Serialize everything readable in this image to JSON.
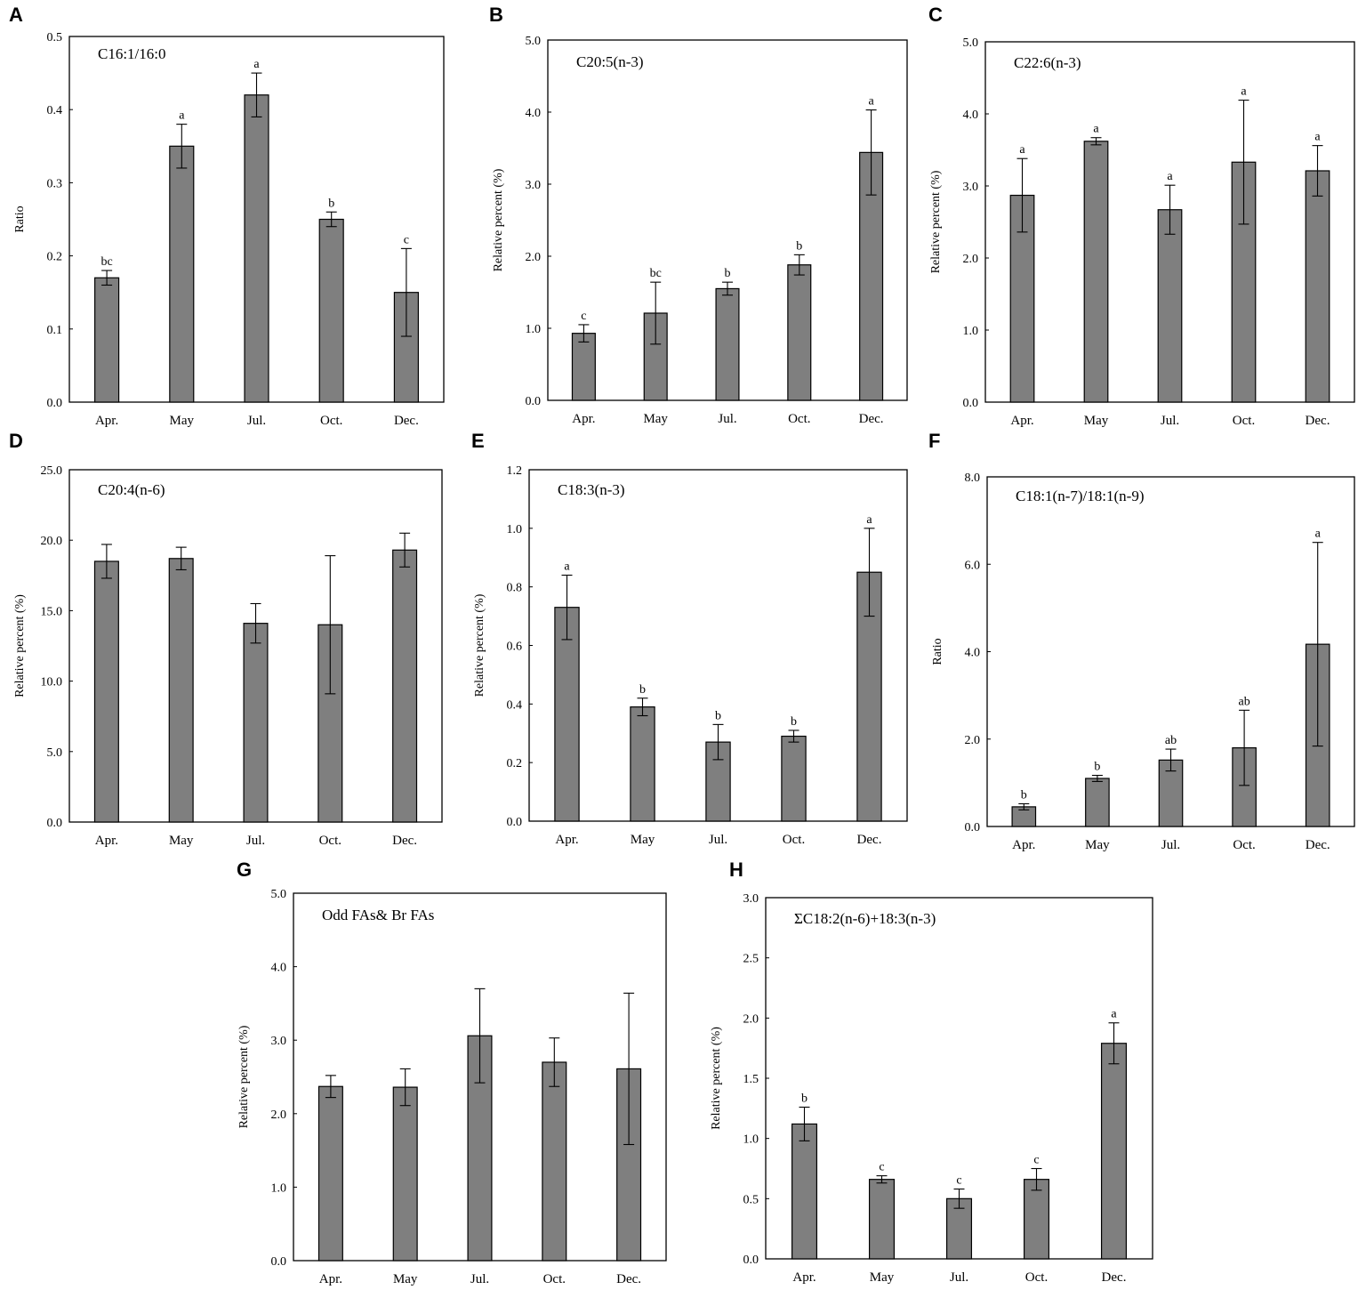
{
  "chart_data": [
    {
      "panel": "A",
      "type": "bar",
      "title": "C16:1/16:0",
      "ylabel": "Ratio",
      "xlabel": "",
      "categories": [
        "Apr.",
        "May",
        "Jul.",
        "Oct.",
        "Dec."
      ],
      "values": [
        0.17,
        0.35,
        0.42,
        0.25,
        0.15
      ],
      "errors": [
        0.01,
        0.03,
        0.03,
        0.01,
        0.06
      ],
      "sig": [
        "bc",
        "a",
        "a",
        "b",
        "c"
      ],
      "ylim": [
        0,
        0.5
      ],
      "yticks": [
        "0.0",
        "0.1",
        "0.2",
        "0.3",
        "0.4",
        "0.5"
      ]
    },
    {
      "panel": "B",
      "type": "bar",
      "title": "C20:5(n-3)",
      "ylabel": "Relative percent (%)",
      "xlabel": "",
      "categories": [
        "Apr.",
        "May",
        "Jul.",
        "Oct.",
        "Dec."
      ],
      "values": [
        0.93,
        1.21,
        1.55,
        1.88,
        3.44
      ],
      "errors": [
        0.12,
        0.43,
        0.09,
        0.14,
        0.59
      ],
      "sig": [
        "c",
        "bc",
        "b",
        "b",
        "a"
      ],
      "ylim": [
        0,
        5
      ],
      "yticks": [
        "0.0",
        "1.0",
        "2.0",
        "3.0",
        "4.0",
        "5.0"
      ]
    },
    {
      "panel": "C",
      "type": "bar",
      "title": "C22:6(n-3)",
      "ylabel": "Relative percent (%)",
      "xlabel": "",
      "categories": [
        "Apr.",
        "May",
        "Jul.",
        "Oct.",
        "Dec."
      ],
      "values": [
        2.87,
        3.62,
        2.67,
        3.33,
        3.21
      ],
      "errors": [
        0.51,
        0.05,
        0.34,
        0.86,
        0.35
      ],
      "sig": [
        "a",
        "a",
        "a",
        "a",
        "a"
      ],
      "ylim": [
        0,
        5
      ],
      "yticks": [
        "0.0",
        "1.0",
        "2.0",
        "3.0",
        "4.0",
        "5.0"
      ]
    },
    {
      "panel": "D",
      "type": "bar",
      "title": "C20:4(n-6)",
      "ylabel": "Relative percent (%)",
      "xlabel": "",
      "categories": [
        "Apr.",
        "May",
        "Jul.",
        "Oct.",
        "Dec."
      ],
      "values": [
        18.5,
        18.7,
        14.1,
        14.0,
        19.3
      ],
      "errors": [
        1.2,
        0.8,
        1.4,
        4.9,
        1.2
      ],
      "sig": [
        "",
        "",
        "",
        "",
        ""
      ],
      "ylim": [
        0,
        25
      ],
      "yticks": [
        "0.0",
        "5.0",
        "10.0",
        "15.0",
        "20.0",
        "25.0"
      ]
    },
    {
      "panel": "E",
      "type": "bar",
      "title": "C18:3(n-3)",
      "ylabel": "Relative percent (%)",
      "xlabel": "",
      "categories": [
        "Apr.",
        "May",
        "Jul.",
        "Oct.",
        "Dec."
      ],
      "values": [
        0.73,
        0.39,
        0.27,
        0.29,
        0.85
      ],
      "errors": [
        0.11,
        0.03,
        0.06,
        0.02,
        0.15
      ],
      "sig": [
        "a",
        "b",
        "b",
        "b",
        "a"
      ],
      "ylim": [
        0,
        1.2
      ],
      "yticks": [
        "0.0",
        "0.2",
        "0.4",
        "0.6",
        "0.8",
        "1.0",
        "1.2"
      ]
    },
    {
      "panel": "F",
      "type": "bar",
      "title": "C18:1(n-7)/18:1(n-9)",
      "ylabel": "Ratio",
      "xlabel": "",
      "categories": [
        "Apr.",
        "May",
        "Jul.",
        "Oct.",
        "Dec."
      ],
      "values": [
        0.45,
        1.1,
        1.52,
        1.8,
        4.17
      ],
      "errors": [
        0.07,
        0.07,
        0.25,
        0.86,
        2.33
      ],
      "sig": [
        "b",
        "b",
        "ab",
        "ab",
        "a"
      ],
      "ylim": [
        0,
        8
      ],
      "yticks": [
        "0.0",
        "2.0",
        "4.0",
        "6.0",
        "8.0"
      ]
    },
    {
      "panel": "G",
      "type": "bar",
      "title": "Odd FAs& Br FAs",
      "ylabel": "Relative percent (%)",
      "xlabel": "",
      "categories": [
        "Apr.",
        "May",
        "Jul.",
        "Oct.",
        "Dec."
      ],
      "values": [
        2.37,
        2.36,
        3.06,
        2.7,
        2.61
      ],
      "errors": [
        0.15,
        0.25,
        0.64,
        0.33,
        1.03
      ],
      "sig": [
        "",
        "",
        "",
        "",
        ""
      ],
      "ylim": [
        0,
        5
      ],
      "yticks": [
        "0.0",
        "1.0",
        "2.0",
        "3.0",
        "4.0",
        "5.0"
      ]
    },
    {
      "panel": "H",
      "type": "bar",
      "title": "ΣC18:2(n-6)+18:3(n-3)",
      "ylabel": "Relative percent (%)",
      "xlabel": "",
      "categories": [
        "Apr.",
        "May",
        "Jul.",
        "Oct.",
        "Dec."
      ],
      "values": [
        1.12,
        0.66,
        0.5,
        0.66,
        1.79
      ],
      "errors": [
        0.14,
        0.03,
        0.08,
        0.09,
        0.17
      ],
      "sig": [
        "b",
        "c",
        "c",
        "c",
        "a"
      ],
      "ylim": [
        0,
        3
      ],
      "yticks": [
        "0.0",
        "0.5",
        "1.0",
        "1.5",
        "2.0",
        "2.5",
        "3.0"
      ]
    }
  ]
}
